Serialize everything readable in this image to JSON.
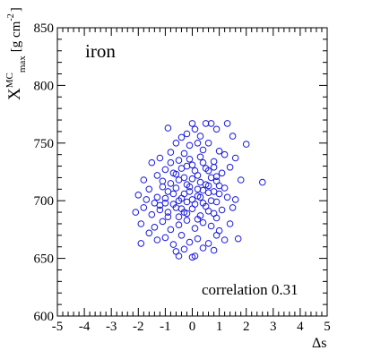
{
  "chart_data": {
    "type": "scatter",
    "title": "",
    "annotation_top": "iron",
    "annotation_bottom": "correlation 0.31",
    "xlabel": "Δs",
    "ylabel": "X",
    "ylabel_sup": "MC",
    "ylabel_sub": "max",
    "ylabel_unit": "[g cm",
    "ylabel_unit_sup": "-2",
    "ylabel_unit_close": "]",
    "xlim": [
      -5,
      5
    ],
    "ylim": [
      600,
      850
    ],
    "xticks": [
      "-5",
      "-4",
      "-3",
      "-2",
      "-1",
      "0",
      "1",
      "2",
      "3",
      "4",
      "5"
    ],
    "yticks": [
      "600",
      "650",
      "700",
      "750",
      "800",
      "850"
    ],
    "grid": false,
    "marker": "open-circle",
    "marker_color": "#1a1adb",
    "points": [
      [
        -0.9,
        763
      ],
      [
        -0.4,
        755
      ],
      [
        -0.2,
        758
      ],
      [
        0.0,
        767
      ],
      [
        0.1,
        762
      ],
      [
        0.3,
        756
      ],
      [
        0.5,
        767
      ],
      [
        0.7,
        767
      ],
      [
        0.9,
        762
      ],
      [
        1.3,
        767
      ],
      [
        1.5,
        756
      ],
      [
        -0.6,
        750
      ],
      [
        -0.1,
        748
      ],
      [
        0.2,
        750
      ],
      [
        0.6,
        750
      ],
      [
        2.0,
        749
      ],
      [
        -1.2,
        737
      ],
      [
        -0.8,
        742
      ],
      [
        -0.3,
        741
      ],
      [
        0.4,
        744
      ],
      [
        1.0,
        743
      ],
      [
        1.2,
        740
      ],
      [
        -1.5,
        733
      ],
      [
        -0.5,
        735
      ],
      [
        0.8,
        734
      ],
      [
        1.6,
        737
      ],
      [
        -1.8,
        718
      ],
      [
        -1.3,
        722
      ],
      [
        -1.0,
        727
      ],
      [
        -0.7,
        724
      ],
      [
        -0.2,
        730
      ],
      [
        0.1,
        726
      ],
      [
        0.5,
        728
      ],
      [
        0.9,
        721
      ],
      [
        1.1,
        724
      ],
      [
        1.4,
        729
      ],
      [
        -1.6,
        710
      ],
      [
        -1.1,
        712
      ],
      [
        -0.8,
        715
      ],
      [
        -0.5,
        718
      ],
      [
        -0.2,
        714
      ],
      [
        0.0,
        719
      ],
      [
        0.3,
        716
      ],
      [
        0.6,
        713
      ],
      [
        0.9,
        717
      ],
      [
        1.2,
        711
      ],
      [
        1.8,
        718
      ],
      [
        2.6,
        716
      ],
      [
        -2.0,
        705
      ],
      [
        -1.7,
        701
      ],
      [
        -1.3,
        703
      ],
      [
        -1.0,
        698
      ],
      [
        -0.7,
        706
      ],
      [
        -0.4,
        702
      ],
      [
        -0.1,
        708
      ],
      [
        0.2,
        704
      ],
      [
        0.4,
        709
      ],
      [
        0.7,
        700
      ],
      [
        1.0,
        706
      ],
      [
        1.3,
        703
      ],
      [
        1.6,
        701
      ],
      [
        -2.1,
        690
      ],
      [
        -1.8,
        694
      ],
      [
        -1.5,
        688
      ],
      [
        -1.2,
        692
      ],
      [
        -0.9,
        686
      ],
      [
        -0.6,
        694
      ],
      [
        -0.3,
        690
      ],
      [
        0.0,
        693
      ],
      [
        0.3,
        687
      ],
      [
        0.5,
        695
      ],
      [
        0.8,
        689
      ],
      [
        1.1,
        692
      ],
      [
        1.5,
        694
      ],
      [
        -1.9,
        680
      ],
      [
        -1.4,
        677
      ],
      [
        -1.1,
        682
      ],
      [
        -0.8,
        675
      ],
      [
        -0.5,
        679
      ],
      [
        -0.2,
        683
      ],
      [
        0.1,
        676
      ],
      [
        0.4,
        681
      ],
      [
        0.7,
        678
      ],
      [
        1.0,
        674
      ],
      [
        1.4,
        680
      ],
      [
        -1.6,
        672
      ],
      [
        -1.3,
        666
      ],
      [
        -1.0,
        668
      ],
      [
        -0.7,
        662
      ],
      [
        -0.4,
        670
      ],
      [
        -0.1,
        664
      ],
      [
        0.2,
        667
      ],
      [
        0.6,
        663
      ],
      [
        0.9,
        670
      ],
      [
        1.2,
        666
      ],
      [
        1.7,
        667
      ],
      [
        -1.9,
        663
      ],
      [
        -0.6,
        656
      ],
      [
        -0.3,
        658
      ],
      [
        0.0,
        651
      ],
      [
        0.1,
        652
      ],
      [
        0.4,
        659
      ],
      [
        0.8,
        657
      ],
      [
        -0.5,
        652
      ],
      [
        -1.4,
        698
      ],
      [
        -1.2,
        696
      ],
      [
        -1.0,
        702
      ],
      [
        -0.9,
        708
      ],
      [
        -0.7,
        697
      ],
      [
        -0.6,
        711
      ],
      [
        -0.5,
        700
      ],
      [
        -0.4,
        693
      ],
      [
        -0.3,
        706
      ],
      [
        -0.2,
        699
      ],
      [
        -0.1,
        712
      ],
      [
        0.0,
        701
      ],
      [
        0.1,
        697
      ],
      [
        0.2,
        710
      ],
      [
        0.3,
        703
      ],
      [
        0.4,
        698
      ],
      [
        0.5,
        714
      ],
      [
        0.6,
        707
      ],
      [
        0.7,
        720
      ],
      [
        0.8,
        708
      ],
      [
        0.9,
        699
      ],
      [
        1.0,
        713
      ],
      [
        -0.9,
        690
      ],
      [
        -0.5,
        686
      ],
      [
        -0.2,
        689
      ],
      [
        0.2,
        684
      ],
      [
        0.6,
        691
      ],
      [
        0.9,
        685
      ],
      [
        -1.1,
        717
      ],
      [
        -0.6,
        723
      ],
      [
        -0.3,
        720
      ],
      [
        0.2,
        722
      ],
      [
        0.4,
        733
      ],
      [
        0.6,
        726
      ],
      [
        0.3,
        738
      ],
      [
        -0.1,
        736
      ],
      [
        -0.4,
        728
      ],
      [
        0.0,
        731
      ],
      [
        -0.8,
        733
      ],
      [
        0.8,
        729
      ]
    ]
  }
}
